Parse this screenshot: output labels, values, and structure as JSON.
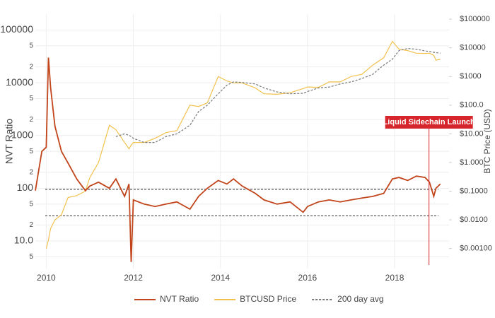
{
  "chart_data": {
    "type": "line",
    "y_label": "NVT Ratio",
    "y2_label": "BTC Price (USD)",
    "log_scale": true,
    "grid": true,
    "legend": "bottom",
    "xlim": [
      2009.75,
      2019.25
    ],
    "xticks": [
      2010,
      2012,
      2014,
      2016,
      2018
    ],
    "ylim": [
      3,
      200000
    ],
    "yticks": [
      100000,
      {
        "value": 50000,
        "label": "5"
      },
      {
        "value": 20000,
        "label": "2"
      },
      10000,
      {
        "value": 5000,
        "label": "5"
      },
      {
        "value": 2000,
        "label": "2"
      },
      1000,
      {
        "value": 500,
        "label": "5"
      },
      {
        "value": 200,
        "label": "2"
      },
      100,
      {
        "value": 50,
        "label": "5"
      },
      {
        "value": 20,
        "label": "2"
      },
      {
        "value": 10,
        "label": "10.0"
      },
      {
        "value": 5,
        "label": "5"
      }
    ],
    "y2lim": [
      0.0002,
      150000
    ],
    "y2ticks": [
      {
        "value": 100000,
        "label": "$100000"
      },
      {
        "value": 10000,
        "label": "$10000"
      },
      {
        "value": 1000,
        "label": "$1000"
      },
      {
        "value": 100,
        "label": "$100.0"
      },
      {
        "value": 10,
        "label": "$10.00"
      },
      {
        "value": 1,
        "label": "$1.000"
      },
      {
        "value": 0.1,
        "label": "$0.1000"
      },
      {
        "value": 0.01,
        "label": "$0.0100"
      },
      {
        "value": 0.001,
        "label": "$0.00100"
      }
    ],
    "reference_lines": [
      95,
      30
    ],
    "annotation": {
      "text": "Liquid Sidechain Launch",
      "x": 2018.79,
      "color": "#d7262b"
    },
    "x": [
      2009.75,
      2009.9,
      2010.0,
      2010.05,
      2010.1,
      2010.2,
      2010.35,
      2010.5,
      2010.7,
      2010.9,
      2011.0,
      2011.2,
      2011.45,
      2011.6,
      2011.8,
      2011.9,
      2011.95,
      2012.0,
      2012.25,
      2012.5,
      2012.75,
      2013.0,
      2013.3,
      2013.5,
      2013.7,
      2013.95,
      2014.15,
      2014.3,
      2014.5,
      2014.8,
      2015.0,
      2015.3,
      2015.6,
      2015.9,
      2016.0,
      2016.25,
      2016.5,
      2016.75,
      2017.0,
      2017.25,
      2017.5,
      2017.75,
      2017.95,
      2018.1,
      2018.3,
      2018.5,
      2018.7,
      2018.8,
      2018.9,
      2018.95,
      2019.05
    ],
    "series": [
      {
        "name": "NVT Ratio",
        "color": "#c1441a",
        "values": [
          90,
          500,
          600,
          30000,
          8000,
          1500,
          500,
          300,
          150,
          90,
          110,
          130,
          100,
          150,
          70,
          120,
          4,
          60,
          50,
          45,
          50,
          55,
          40,
          70,
          100,
          140,
          120,
          150,
          110,
          80,
          60,
          50,
          55,
          35,
          45,
          55,
          60,
          55,
          60,
          65,
          70,
          80,
          150,
          160,
          140,
          170,
          160,
          130,
          70,
          100,
          120
        ]
      },
      {
        "name": "BTCUSD Price",
        "color": "#f2c14e",
        "axis": "y2",
        "values": [
          null,
          null,
          0.001,
          0.002,
          0.005,
          0.01,
          0.015,
          0.06,
          0.07,
          0.1,
          0.3,
          1,
          20,
          14,
          5,
          3,
          4,
          5,
          5,
          7,
          11,
          13,
          100,
          90,
          120,
          1000,
          700,
          600,
          600,
          400,
          250,
          240,
          270,
          380,
          430,
          420,
          650,
          650,
          1000,
          1200,
          2500,
          4500,
          17000,
          9000,
          8000,
          6500,
          6400,
          6500,
          5500,
          3700,
          4000
        ]
      },
      {
        "name": "200 day avg",
        "color": "#777777",
        "axis": "y2",
        "dash": true,
        "values": [
          null,
          null,
          null,
          null,
          null,
          null,
          null,
          null,
          null,
          null,
          null,
          null,
          null,
          8,
          10,
          9,
          8,
          7,
          5,
          5,
          8,
          10,
          20,
          60,
          100,
          250,
          500,
          650,
          620,
          550,
          400,
          290,
          250,
          260,
          300,
          400,
          430,
          550,
          650,
          850,
          1200,
          2500,
          4000,
          8000,
          9500,
          9000,
          7800,
          7500,
          7000,
          6800,
          6500
        ]
      }
    ]
  }
}
